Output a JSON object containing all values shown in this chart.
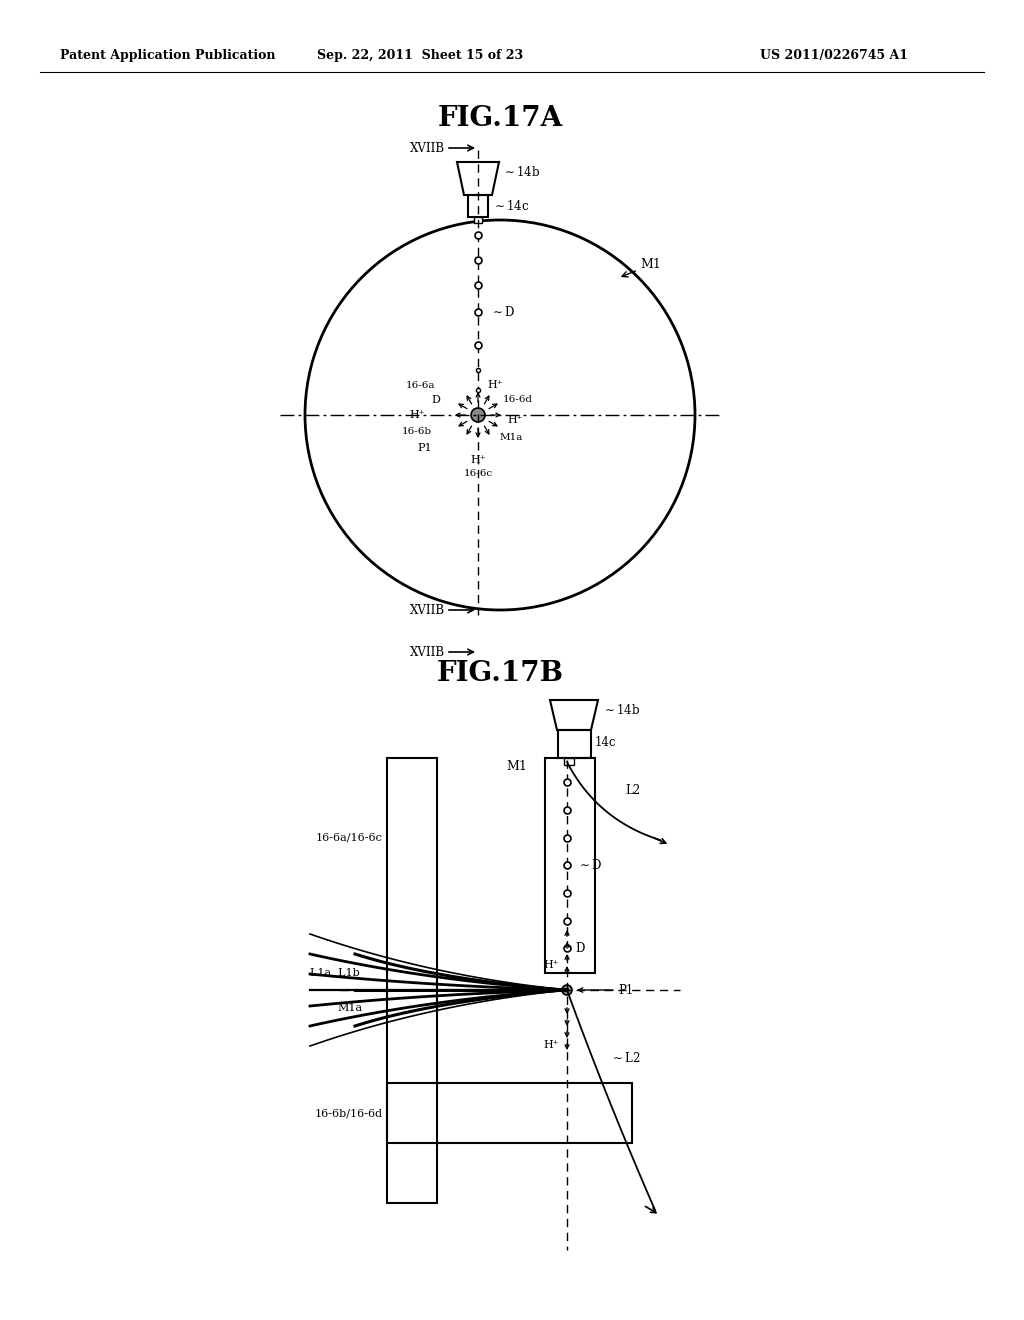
{
  "bg_color": "#ffffff",
  "header_text": "Patent Application Publication",
  "header_date": "Sep. 22, 2011  Sheet 15 of 23",
  "header_patent": "US 2011/0226745 A1",
  "fig17a_title": "FIG.17A",
  "fig17b_title": "FIG.17B",
  "line_color": "#000000",
  "gray_color": "#555555"
}
